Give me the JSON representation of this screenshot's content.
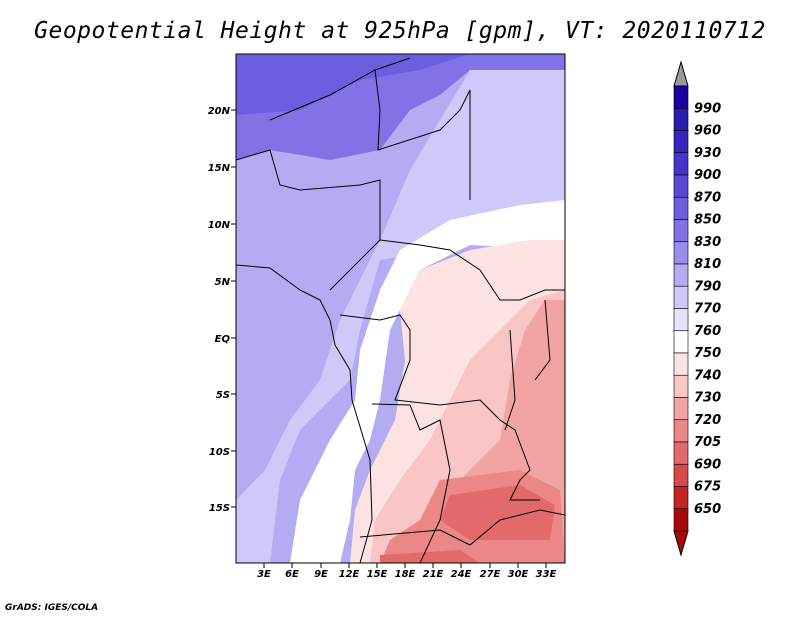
{
  "title": "Geopotential Height at 925hPa [gpm], VT: 2020110712",
  "credit": "GrADS: IGES/COLA",
  "map": {
    "lat_ticks": [
      "20N",
      "15N",
      "10N",
      "5N",
      "EQ",
      "5S",
      "10S",
      "15S"
    ],
    "lon_ticks": [
      "3E",
      "6E",
      "9E",
      "12E",
      "15E",
      "18E",
      "21E",
      "24E",
      "27E",
      "30E",
      "33E"
    ]
  },
  "colorbar": {
    "levels": [
      "990",
      "960",
      "930",
      "900",
      "870",
      "850",
      "830",
      "810",
      "790",
      "770",
      "760",
      "750",
      "740",
      "730",
      "720",
      "705",
      "690",
      "675",
      "650"
    ],
    "colors": [
      "#1d00a3",
      "#2a1cb0",
      "#3626bf",
      "#4734cc",
      "#5a48d6",
      "#6c5edf",
      "#8173e6",
      "#978ded",
      "#b3acf3",
      "#cdc9f8",
      "#e4e3fc",
      "#ffffff",
      "#fde2e2",
      "#f9c5c5",
      "#f2a4a4",
      "#eb8787",
      "#e36a6a",
      "#d94848",
      "#c42424",
      "#a80a0a"
    ],
    "top_arrow_color": "#9a9a9a"
  }
}
